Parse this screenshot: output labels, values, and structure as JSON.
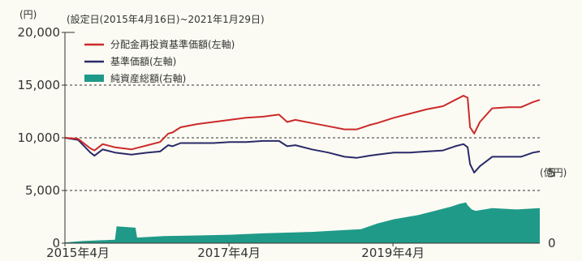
{
  "chart_data": {
    "type": "line",
    "title": "(設定日(2015年4月16日)~2021年1月29日)",
    "left_unit": "(円)",
    "right_unit": "(億円)",
    "left_axis": {
      "ticks": [
        0,
        5000,
        10000,
        15000,
        20000
      ],
      "tick_labels": [
        "0",
        "5,000",
        "10,000",
        "15,000",
        "20,000"
      ],
      "ylim": [
        0,
        20000
      ]
    },
    "right_axis": {
      "ticks": [
        0,
        5
      ],
      "tick_labels": [
        "0",
        "5"
      ],
      "ylim": [
        0,
        15
      ]
    },
    "x_tick_labels": [
      {
        "label": "2015年4月",
        "x": 2015.29
      },
      {
        "label": "2017年4月",
        "x": 2017.29
      },
      {
        "label": "2019年4月",
        "x": 2019.29
      }
    ],
    "xlim": [
      2015.29,
      2021.08
    ],
    "grid": "dashed at 5,000 / 10,000 / 15,000",
    "legend_position": "top-left",
    "colors": {
      "reinvested": "#cc2a2a",
      "nav": "#2a2a6a",
      "assets": "#1f9a88"
    },
    "series": [
      {
        "name": "分配金再投資基準価額(左軸)",
        "axis": "left",
        "type": "line",
        "x": [
          2015.29,
          2015.45,
          2015.6,
          2015.65,
          2015.75,
          2015.9,
          2016.1,
          2016.3,
          2016.45,
          2016.55,
          2016.6,
          2016.7,
          2016.9,
          2017.1,
          2017.3,
          2017.5,
          2017.7,
          2017.9,
          2018.0,
          2018.1,
          2018.3,
          2018.5,
          2018.7,
          2018.85,
          2019.0,
          2019.1,
          2019.3,
          2019.5,
          2019.7,
          2019.9,
          2020.05,
          2020.15,
          2020.2,
          2020.23,
          2020.28,
          2020.35,
          2020.5,
          2020.7,
          2020.85,
          2021.0,
          2021.08
        ],
        "values": [
          10000,
          9900,
          9000,
          8800,
          9400,
          9100,
          8900,
          9300,
          9600,
          10400,
          10500,
          11000,
          11300,
          11500,
          11700,
          11900,
          12000,
          12200,
          11500,
          11700,
          11400,
          11100,
          10800,
          10800,
          11200,
          11400,
          11900,
          12300,
          12700,
          13000,
          13600,
          14000,
          13800,
          11000,
          10400,
          11500,
          12800,
          12900,
          12900,
          13400,
          13600
        ]
      },
      {
        "name": "基準価額(左軸)",
        "axis": "left",
        "type": "line",
        "x": [
          2015.29,
          2015.45,
          2015.6,
          2015.65,
          2015.75,
          2015.9,
          2016.1,
          2016.3,
          2016.45,
          2016.55,
          2016.6,
          2016.7,
          2016.9,
          2017.1,
          2017.3,
          2017.5,
          2017.7,
          2017.9,
          2018.0,
          2018.1,
          2018.3,
          2018.5,
          2018.7,
          2018.85,
          2019.0,
          2019.1,
          2019.3,
          2019.5,
          2019.7,
          2019.9,
          2020.05,
          2020.15,
          2020.2,
          2020.23,
          2020.28,
          2020.35,
          2020.5,
          2020.7,
          2020.85,
          2021.0,
          2021.08
        ],
        "values": [
          10000,
          9800,
          8600,
          8300,
          8900,
          8600,
          8400,
          8600,
          8700,
          9300,
          9200,
          9500,
          9500,
          9500,
          9600,
          9600,
          9700,
          9700,
          9200,
          9300,
          8900,
          8600,
          8200,
          8100,
          8300,
          8400,
          8600,
          8600,
          8700,
          8800,
          9200,
          9400,
          9100,
          7500,
          6700,
          7300,
          8200,
          8200,
          8200,
          8600,
          8700
        ]
      },
      {
        "name": "純資産総額(右軸)",
        "axis": "right",
        "type": "area",
        "x": [
          2015.29,
          2015.5,
          2015.9,
          2015.92,
          2016.15,
          2016.17,
          2016.5,
          2016.9,
          2017.3,
          2017.7,
          2018.0,
          2018.3,
          2018.6,
          2018.9,
          2019.1,
          2019.3,
          2019.6,
          2019.8,
          2020.0,
          2020.1,
          2020.18,
          2020.2,
          2020.25,
          2020.3,
          2020.5,
          2020.8,
          2021.08
        ],
        "values": [
          0.05,
          0.15,
          0.25,
          1.2,
          1.1,
          0.4,
          0.5,
          0.55,
          0.6,
          0.7,
          0.75,
          0.8,
          0.9,
          1.0,
          1.4,
          1.7,
          2.0,
          2.3,
          2.6,
          2.8,
          2.9,
          2.7,
          2.4,
          2.3,
          2.5,
          2.4,
          2.5
        ]
      }
    ]
  }
}
